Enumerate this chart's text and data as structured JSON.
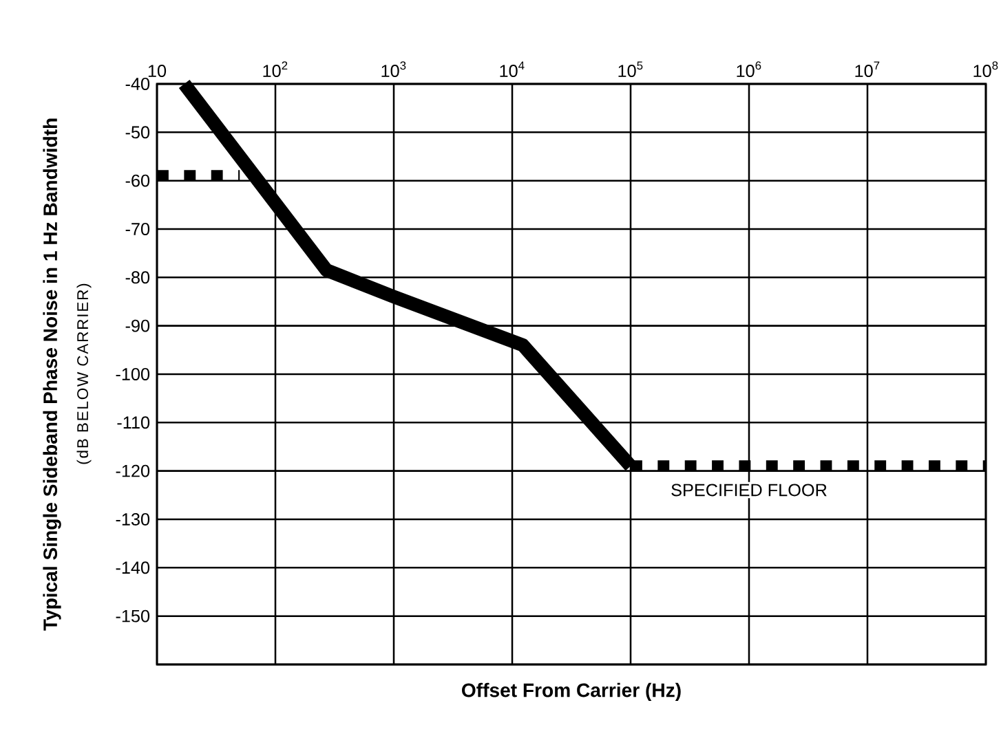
{
  "chart_data": {
    "type": "line",
    "xlabel": "Offset From Carrier (Hz)",
    "ylabel": "Typical Single Sideband Phase Noise in 1 Hz Bandwidth",
    "log": "x",
    "grid": true,
    "marker": "none",
    "xlim": [
      10,
      100000000
    ],
    "xticks": [
      10,
      {
        "value": 100,
        "label": "10$^{2}$"
      },
      {
        "value": 1000,
        "label": "10$^{3}$"
      },
      {
        "value": 10000,
        "label": "10$^{4}$"
      },
      {
        "value": 100000,
        "label": "10$^{5}$"
      },
      {
        "value": 1000000,
        "label": "10$^{6}$"
      },
      {
        "value": 10000000,
        "label": "10$^{7}$"
      },
      {
        "value": 100000000,
        "label": "10$^{8}$"
      }
    ],
    "ylim": [
      -160,
      -40
    ],
    "yticks": [
      -40,
      -50,
      -60,
      -70,
      -80,
      -90,
      -100,
      -110,
      -120,
      -130,
      -140,
      -150,
      {
        "value": -160,
        "label": null
      }
    ],
    "series": [
      {
        "color": "#000000",
        "line_style": "solid",
        "x": [
          17,
          270,
          1000,
          12300,
          100000
        ],
        "values": [
          -40,
          -78.5,
          -84,
          -94,
          -119
        ]
      },
      {
        "color": "#000000",
        "line_style": "dotted",
        "x": [
          10,
          50
        ],
        "values": [
          -59,
          -59
        ]
      },
      {
        "color": "#000000",
        "line_style": "dotted",
        "x": [
          100000,
          100000000
        ],
        "values": [
          -119,
          -119
        ]
      }
    ],
    "annotations": [
      {
        "text": "SPECIFIED FLOOR",
        "x": 1000000,
        "y": -119
      },
      "(dB BELOW CARRIER)"
    ]
  }
}
